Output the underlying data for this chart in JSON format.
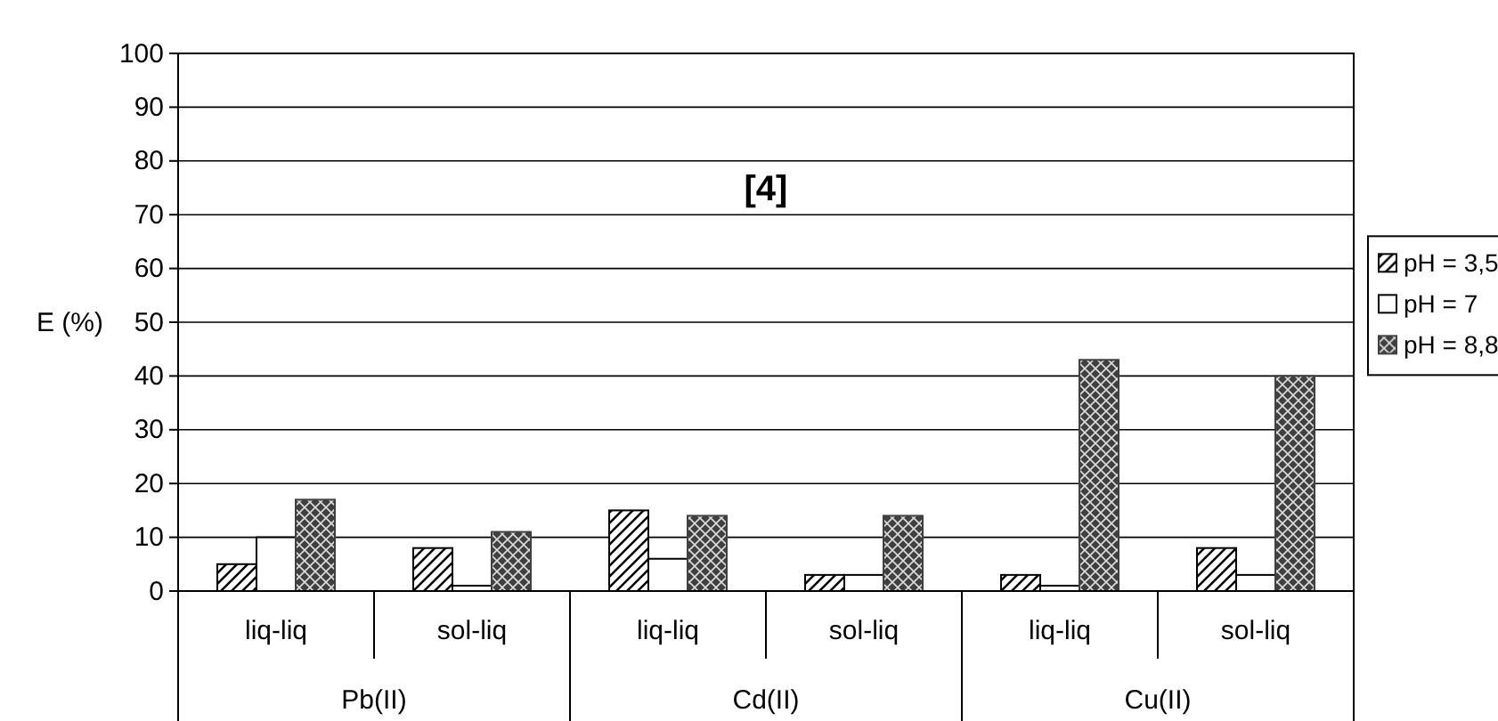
{
  "chart_data": {
    "type": "bar",
    "title": "[4]",
    "ylabel": "E (%)",
    "categories": [
      "liq-liq",
      "sol-liq",
      "liq-liq",
      "sol-liq",
      "liq-liq",
      "sol-liq"
    ],
    "series": [
      {
        "name": "pH = 3,5",
        "color": "#000000",
        "values": [
          5,
          8,
          15,
          3,
          3,
          8
        ]
      },
      {
        "name": "pH = 7",
        "color": "#ffffff",
        "values": [
          10,
          1,
          6,
          3,
          1,
          3
        ]
      },
      {
        "name": "pH = 8,8",
        "color": "#404040",
        "values": [
          17,
          11,
          14,
          14,
          43,
          40
        ]
      }
    ],
    "annotations": [
      "Pb(II)",
      "Cd(II)",
      "Cu(II)"
    ],
    "ylim": [
      0,
      100
    ],
    "yticks": [
      0,
      10,
      20,
      30,
      40,
      50,
      60,
      70,
      80,
      90,
      100
    ],
    "grid": "y",
    "legend": "right"
  }
}
